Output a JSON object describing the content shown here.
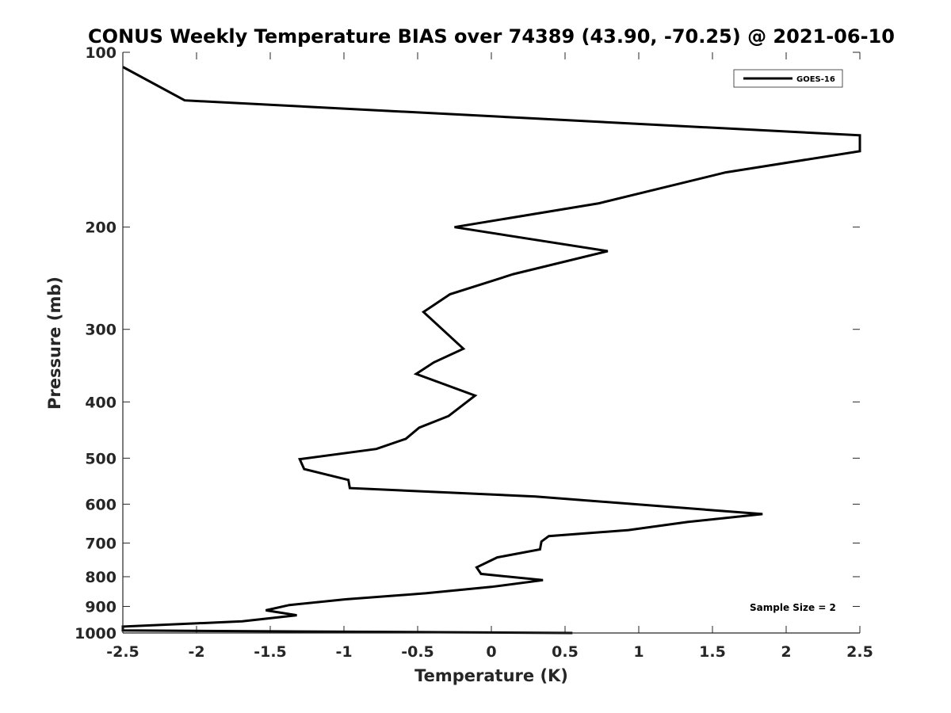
{
  "chart_data": {
    "type": "line",
    "title": "CONUS Weekly Temperature BIAS over 74389 (43.90, -70.25) @ 2021-06-10",
    "xlabel": "Temperature (K)",
    "ylabel": "Pressure (mb)",
    "xlim": [
      -2.5,
      2.5
    ],
    "ylim": [
      100,
      1000
    ],
    "y_scale": "log",
    "y_reversed": true,
    "x_ticks": [
      -2.5,
      -2,
      -1.5,
      -1,
      -0.5,
      0,
      0.5,
      1,
      1.5,
      2,
      2.5
    ],
    "x_tick_labels": [
      "-2.5",
      "-2",
      "-1.5",
      "-1",
      "-0.5",
      "0",
      "0.5",
      "1",
      "1.5",
      "2",
      "2.5"
    ],
    "y_ticks": [
      100,
      200,
      300,
      400,
      500,
      600,
      700,
      800,
      900,
      1000
    ],
    "y_tick_labels": [
      "100",
      "200",
      "300",
      "400",
      "500",
      "600",
      "700",
      "800",
      "900",
      "1000"
    ],
    "grid": false,
    "legend_position": "top-right",
    "series": [
      {
        "name": "GOES-16",
        "color": "#000000",
        "x": [
          -2.5,
          -2.08,
          2.5,
          2.5,
          1.59,
          0.73,
          -0.25,
          0.79,
          0.15,
          -0.28,
          -0.46,
          -0.19,
          -0.39,
          -0.51,
          -0.11,
          -0.29,
          -0.49,
          -0.58,
          -0.78,
          -1.3,
          -1.27,
          -0.97,
          -0.96,
          0.3,
          1.84,
          1.33,
          0.93,
          0.39,
          0.34,
          0.33,
          0.04,
          -0.1,
          -0.07,
          0.35,
          0.0,
          -0.44,
          -0.99,
          -1.37,
          -1.53,
          -1.32,
          -1.69,
          -2.5,
          -2.5,
          0.55
        ],
        "y": [
          106,
          121,
          139,
          148,
          161,
          182,
          200,
          220,
          241,
          261,
          280,
          324,
          342,
          358,
          390,
          423,
          443,
          463,
          482,
          502,
          522,
          545,
          563,
          582,
          624,
          644,
          665,
          681,
          696,
          718,
          741,
          771,
          791,
          811,
          833,
          854,
          875,
          895,
          914,
          932,
          955,
          975,
          990,
          1000
        ]
      }
    ],
    "annotations": [
      "Sample Size = 2"
    ]
  }
}
